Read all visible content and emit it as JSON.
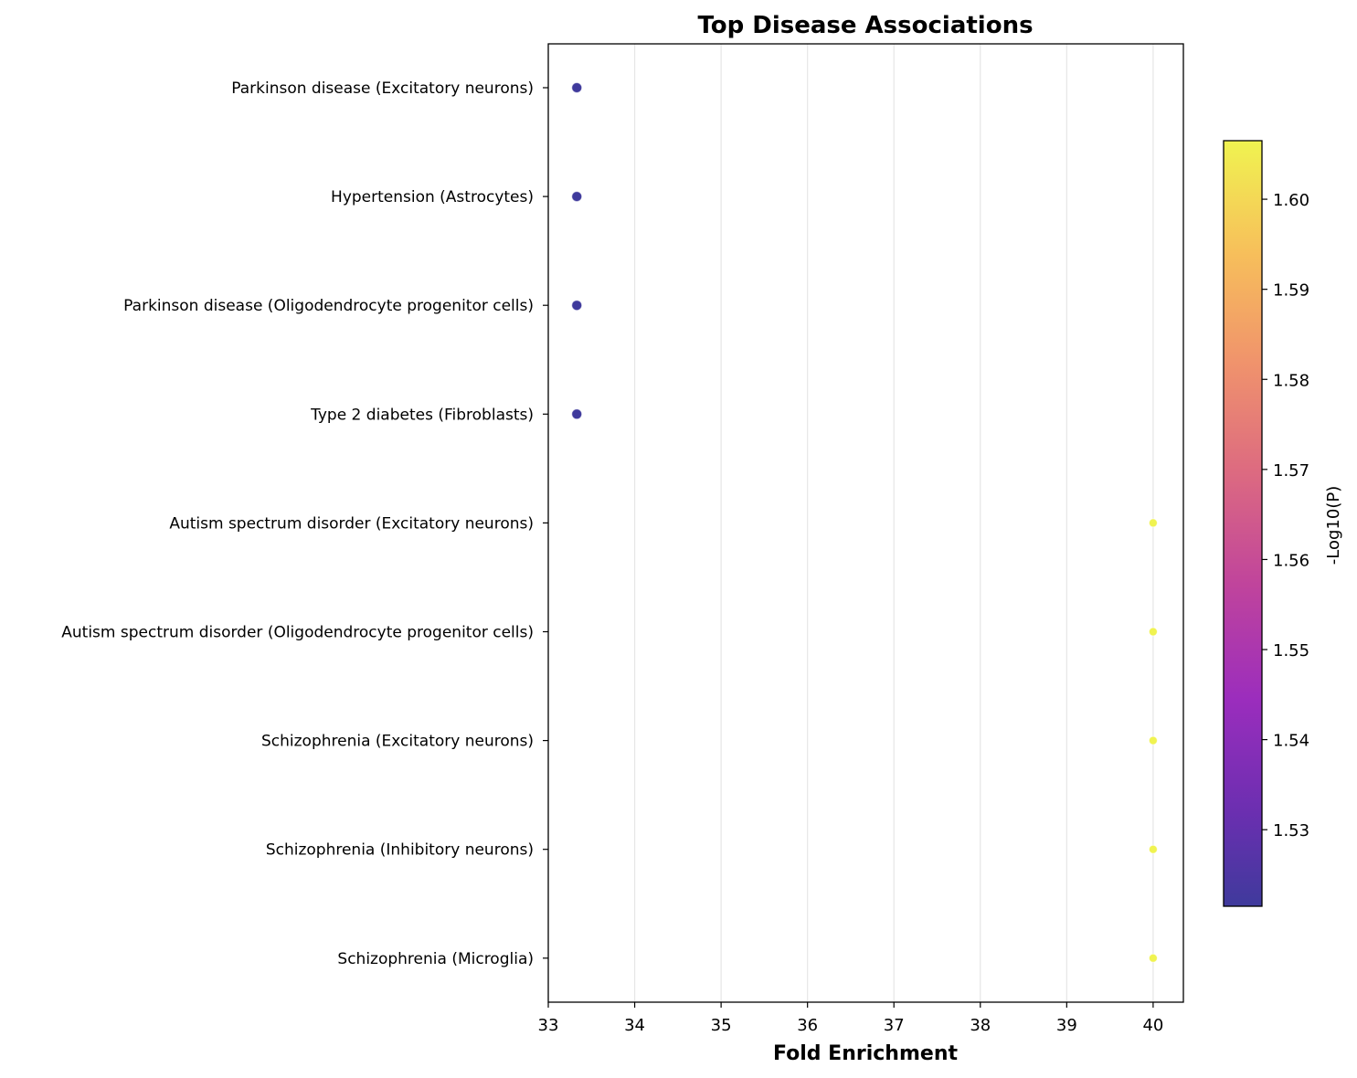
{
  "chart_data": {
    "type": "scatter",
    "title": "Top Disease Associations",
    "xlabel": "Fold Enrichment",
    "ylabel": "",
    "xlim": [
      33,
      40.35
    ],
    "x_ticks": [
      33,
      34,
      35,
      36,
      37,
      38,
      39,
      40
    ],
    "grid": "x",
    "categories": [
      "Parkinson disease (Excitatory neurons)",
      "Hypertension (Astrocytes)",
      "Parkinson disease (Oligodendrocyte progenitor cells)",
      "Type 2 diabetes (Fibroblasts)",
      "Autism spectrum disorder (Excitatory neurons)",
      "Autism spectrum disorder (Oligodendrocyte progenitor cells)",
      "Schizophrenia (Excitatory neurons)",
      "Schizophrenia (Inhibitory neurons)",
      "Schizophrenia (Microglia)"
    ],
    "x": [
      33.33,
      33.33,
      33.33,
      33.33,
      40.0,
      40.0,
      40.0,
      40.0,
      40.0
    ],
    "color_values": [
      1.528,
      1.528,
      1.528,
      1.528,
      1.606,
      1.606,
      1.606,
      1.606,
      1.606
    ],
    "colorbar": {
      "label": "-Log10(P)",
      "range": [
        1.5215,
        1.6065
      ],
      "ticks": [
        "1.53",
        "1.54",
        "1.55",
        "1.56",
        "1.57",
        "1.58",
        "1.59",
        "1.60"
      ],
      "colormap": "plasma"
    },
    "colors": {
      "low": "#3f3a9c",
      "high": "#f0f350",
      "grid": "#e6e6e6"
    }
  }
}
